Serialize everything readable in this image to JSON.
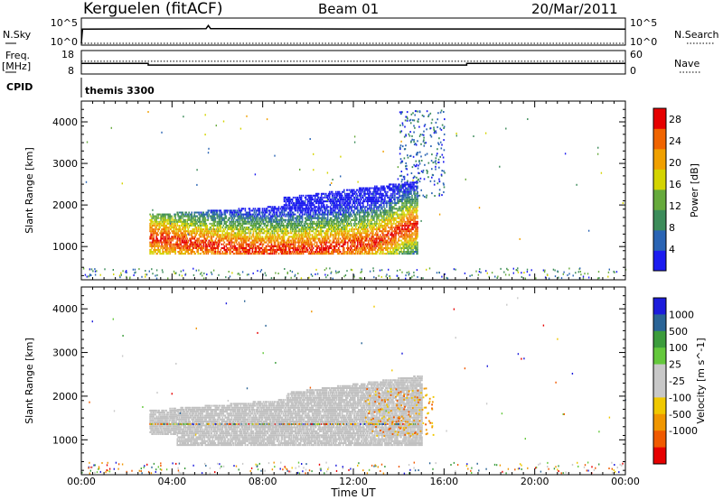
{
  "header": {
    "site": "Kerguelen (fitACF)",
    "beam": "Beam 01",
    "date": "20/Mar/2011"
  },
  "top_panels": {
    "nsky_label": "N.Sky",
    "nsky_ticks": [
      "10^5",
      "10^0"
    ],
    "nsearch_label": "N.Search",
    "nsearch_ticks": [
      "10^5",
      "10^0"
    ],
    "freq_label": "Freq.",
    "freq_unit": "[MHz]",
    "freq_ticks": [
      "18",
      "8"
    ],
    "nave_label": "Nave",
    "nave_ticks": [
      "60",
      "0"
    ],
    "cpid_label": "CPID",
    "cpid_value": "themis 3300"
  },
  "colors": {
    "power_scale": [
      "#1c1cf0",
      "#2a64b4",
      "#3c8c5a",
      "#66aa3c",
      "#d4d400",
      "#f0a000",
      "#f06400",
      "#e60000"
    ],
    "velocity_scale": [
      "#e60000",
      "#f05a00",
      "#f09600",
      "#f0c800",
      "#c8c8c8",
      "#c8c8c8",
      "#64c83c",
      "#3c9c3c",
      "#2a6496",
      "#1c1cdc"
    ],
    "ground_scatter": "#c0c0c0"
  },
  "chart_data": [
    {
      "type": "line",
      "title": "N.Sky / N.Search",
      "x_range_hours": [
        0,
        24
      ],
      "yscale": "log",
      "series": [
        {
          "name": "N.Sky",
          "x": [
            0,
            0.05,
            0.2,
            5.5,
            5.6,
            5.7,
            12,
            18,
            24
          ],
          "y": [
            1,
            4000,
            4000,
            5000,
            30000,
            5000,
            4200,
            4200,
            4000
          ]
        },
        {
          "name": "N.Search",
          "x": [
            0,
            24
          ],
          "y": [
            1,
            1
          ]
        }
      ]
    },
    {
      "type": "line",
      "title": "Freq. / Nave",
      "series": [
        {
          "name": "Freq. [MHz]",
          "x": [
            0,
            2.95,
            2.95,
            17.0,
            17.0,
            24
          ],
          "y": [
            12.4,
            12.4,
            11.6,
            11.6,
            12.4,
            12.4
          ]
        },
        {
          "name": "Nave",
          "x": [
            0,
            24
          ],
          "y": [
            33,
            33
          ]
        }
      ]
    },
    {
      "type": "heatmap",
      "ylabel": "Slant Range [km]",
      "x_ticks": [
        "00:00",
        "04:00",
        "08:00",
        "12:00",
        "16:00",
        "20:00",
        "00:00"
      ],
      "y_ticks": [
        1000,
        2000,
        3000,
        4000
      ],
      "ylim": [
        200,
        4500
      ],
      "colorbar": {
        "label": "Power [dB]",
        "ticks": [
          4,
          8,
          12,
          16,
          20,
          24,
          28
        ],
        "range": [
          0,
          30
        ]
      },
      "regions": [
        {
          "t_start": 3.0,
          "t_end": 14.8,
          "range_low": 850,
          "range_high": 2200,
          "peak_db": 28
        },
        {
          "t_start": 14.0,
          "t_end": 16.0,
          "range_low": 2200,
          "range_high": 4300,
          "peak_db": 8
        }
      ]
    },
    {
      "type": "heatmap",
      "ylabel": "Slant Range [km]",
      "xlabel": "Time UT",
      "x_ticks": [
        "00:00",
        "04:00",
        "08:00",
        "12:00",
        "16:00",
        "20:00",
        "00:00"
      ],
      "y_ticks": [
        1000,
        2000,
        3000,
        4000
      ],
      "ylim": [
        200,
        4500
      ],
      "colorbar": {
        "label": "Velocity [m s^-1]",
        "ticks": [
          1000,
          500,
          100,
          25,
          -25,
          -100,
          -500,
          -1000
        ]
      },
      "regions": [
        {
          "t_start": 3.0,
          "t_end": 15.0,
          "range_low": 900,
          "range_high": 2200,
          "kind": "ground scatter"
        }
      ]
    }
  ],
  "xlabel": "Time UT"
}
